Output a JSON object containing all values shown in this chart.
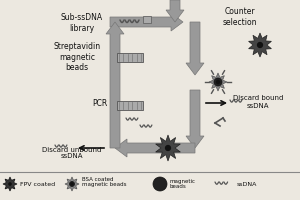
{
  "bg_color": "#ece8e0",
  "text_color": "#111111",
  "arrow_color": "#888888",
  "font_size": 5.5,
  "labels": {
    "sub_ssdna": "Sub-ssDNA\nlibrary",
    "streptavidin": "Streptavidin\nmagnetic\nbeads",
    "pcr": "PCR",
    "discard_unbound": "Discard unbound\nssDNA",
    "counter_selection": "Counter\nselection",
    "discard_bound": "Discard bound\nssDNA"
  }
}
